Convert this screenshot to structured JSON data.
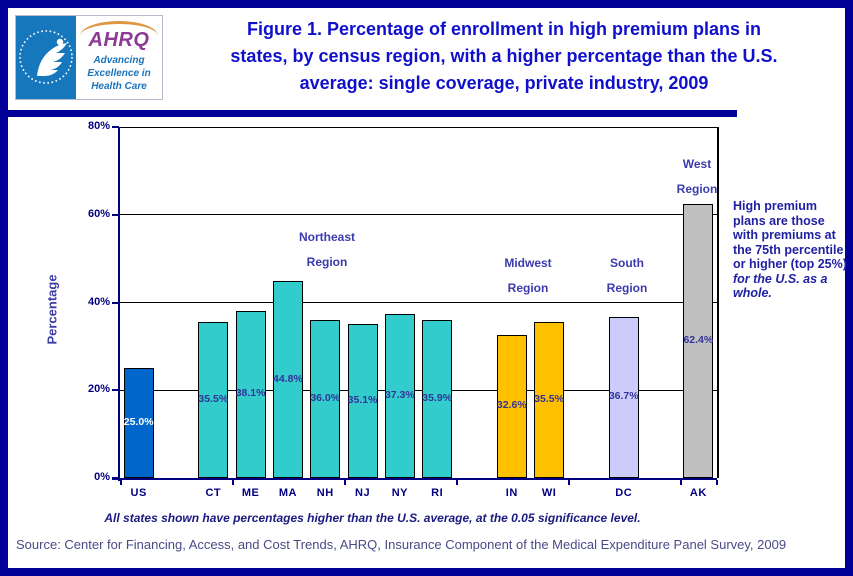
{
  "page": {
    "background": "#FFFFFF",
    "frame_color": "#000099"
  },
  "header": {
    "logo": {
      "hhs_seal": "hhs-eagle-seal",
      "ahrq_acronym": "AHRQ",
      "tagline_lines": [
        "Advancing",
        "Excellence in",
        "Health Care"
      ],
      "colors": {
        "hhs_blue": "#1777BD",
        "ahrq_purple": "#8C3A94",
        "arc_orange": "#E09540",
        "tagline_blue": "#1B74BB"
      }
    },
    "title_lines": [
      "Figure 1. Percentage of enrollment in high premium plans in",
      "states, by census region, with a higher percentage than the U.S.",
      "average: single coverage, private industry, 2009"
    ],
    "title_color": "#1010CC"
  },
  "chart_data": {
    "type": "bar",
    "title": "Figure 1. Percentage of enrollment in high premium plans in states, by census region, with a higher percentage than the U.S. average: single coverage, private industry, 2009",
    "xlabel": "",
    "ylabel": "Percentage",
    "ylim": [
      0,
      80
    ],
    "ytick_labels": [
      "0%",
      "20%",
      "40%",
      "60%",
      "80%"
    ],
    "grid": true,
    "legend": false,
    "categories": [
      "US",
      "CT",
      "ME",
      "MA",
      "NH",
      "NJ",
      "NY",
      "RI",
      "IN",
      "WI",
      "DC",
      "AK"
    ],
    "values": [
      25.0,
      35.5,
      38.1,
      44.8,
      36.0,
      35.1,
      37.3,
      35.9,
      32.6,
      35.5,
      36.7,
      62.4
    ],
    "bars": [
      {
        "state": "US",
        "value": 25.0,
        "label": "25.0%",
        "region": "U.S. average",
        "color": "#0066CC",
        "label_color": "#FFFFFF"
      },
      {
        "state": "CT",
        "value": 35.5,
        "label": "35.5%",
        "region": "Northeast",
        "color": "#33CCCC",
        "label_color": "#333399"
      },
      {
        "state": "ME",
        "value": 38.1,
        "label": "38.1%",
        "region": "Northeast",
        "color": "#33CCCC",
        "label_color": "#333399"
      },
      {
        "state": "MA",
        "value": 44.8,
        "label": "44.8%",
        "region": "Northeast",
        "color": "#33CCCC",
        "label_color": "#333399"
      },
      {
        "state": "NH",
        "value": 36.0,
        "label": "36.0%",
        "region": "Northeast",
        "color": "#33CCCC",
        "label_color": "#333399"
      },
      {
        "state": "NJ",
        "value": 35.1,
        "label": "35.1%",
        "region": "Northeast",
        "color": "#33CCCC",
        "label_color": "#333399"
      },
      {
        "state": "NY",
        "value": 37.3,
        "label": "37.3%",
        "region": "Northeast",
        "color": "#33CCCC",
        "label_color": "#333399"
      },
      {
        "state": "RI",
        "value": 35.9,
        "label": "35.9%",
        "region": "Northeast",
        "color": "#33CCCC",
        "label_color": "#333399"
      },
      {
        "state": "IN",
        "value": 32.6,
        "label": "32.6%",
        "region": "Midwest",
        "color": "#FFC000",
        "label_color": "#333399"
      },
      {
        "state": "WI",
        "value": 35.5,
        "label": "35.5%",
        "region": "Midwest",
        "color": "#FFC000",
        "label_color": "#333399"
      },
      {
        "state": "DC",
        "value": 36.7,
        "label": "36.7%",
        "region": "South",
        "color": "#CCCCFA",
        "label_color": "#333399"
      },
      {
        "state": "AK",
        "value": 62.4,
        "label": "62.4%",
        "region": "West",
        "color": "#C0C0C0",
        "label_color": "#333399"
      }
    ],
    "regions": [
      {
        "name": "Northeast Region",
        "lines": [
          "Northeast",
          "Region"
        ]
      },
      {
        "name": "Midwest Region",
        "lines": [
          "Midwest",
          "Region"
        ]
      },
      {
        "name": "South Region",
        "lines": [
          "South",
          "Region"
        ]
      },
      {
        "name": "West Region",
        "lines": [
          "West",
          "Region"
        ]
      }
    ]
  },
  "annotation": {
    "text_main": "High premium plans are those with premiums at the 75th percentile or higher (top 25%) ",
    "text_italic": "for the U.S. as a whole."
  },
  "footnote": "All states shown have percentages higher than the U.S. average, at the 0.05 significance level.",
  "source": "Source: Center for Financing, Access, and Cost Trends, AHRQ, Insurance Component of the Medical Expenditure Panel Survey, 2009"
}
